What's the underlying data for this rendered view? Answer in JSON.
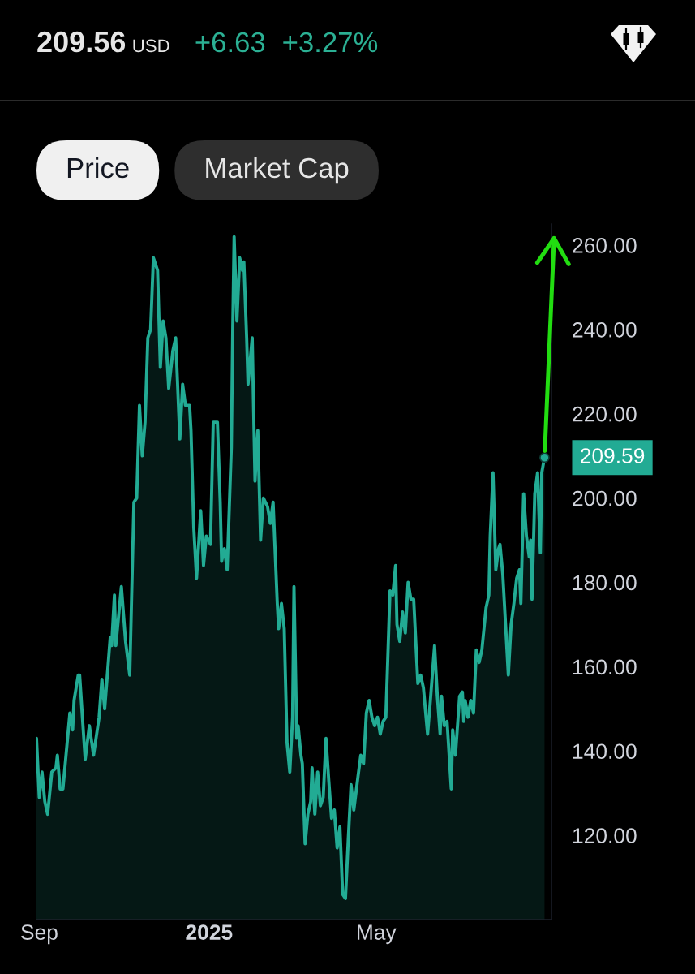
{
  "chart_data": {
    "type": "area",
    "title": "209.56",
    "annotations": [
      "USD",
      "+6.63",
      "+3.27%",
      "Price",
      "Market Cap",
      {
        "text": "209.59",
        "x": "2025-08-30",
        "y": 209.59
      }
    ],
    "color": "#22ab94",
    "x": [
      "2024-08-30",
      "2024-09-01",
      "2024-09-03",
      "2024-09-05",
      "2024-09-07",
      "2024-09-10",
      "2024-09-13",
      "2024-09-14",
      "2024-09-16",
      "2024-09-18",
      "2024-09-23",
      "2024-09-25",
      "2024-09-26",
      "2024-09-29",
      "2024-09-30",
      "2024-10-04",
      "2024-10-07",
      "2024-10-10",
      "2024-10-14",
      "2024-10-16",
      "2024-10-18",
      "2024-10-22",
      "2024-10-23",
      "2024-10-25",
      "2024-10-26",
      "2024-10-30",
      "2024-11-02",
      "2024-11-05",
      "2024-11-08",
      "2024-11-10",
      "2024-11-12",
      "2024-11-14",
      "2024-11-16",
      "2024-11-18",
      "2024-11-20",
      "2024-11-22",
      "2024-11-25",
      "2024-11-27",
      "2024-11-29",
      "2024-12-01",
      "2024-12-03",
      "2024-12-06",
      "2024-12-08",
      "2024-12-11",
      "2024-12-13",
      "2024-12-15",
      "2024-12-18",
      "2024-12-19",
      "2024-12-21",
      "2024-12-23",
      "2024-12-26",
      "2024-12-28",
      "2024-12-30",
      "2025-01-02",
      "2025-01-04",
      "2025-01-07",
      "2025-01-09",
      "2025-01-10",
      "2025-01-12",
      "2025-01-14",
      "2025-01-17",
      "2025-01-18",
      "2025-01-19",
      "2025-01-21",
      "2025-01-23",
      "2025-01-25",
      "2025-01-26",
      "2025-01-28",
      "2025-01-29",
      "2025-02-01",
      "2025-02-03",
      "2025-02-05",
      "2025-02-07",
      "2025-02-09",
      "2025-02-12",
      "2025-02-14",
      "2025-02-16",
      "2025-02-19",
      "2025-02-20",
      "2025-02-22",
      "2025-02-24",
      "2025-02-26",
      "2025-02-28",
      "2025-03-02",
      "2025-03-03",
      "2025-03-05",
      "2025-03-06",
      "2025-03-08",
      "2025-03-09",
      "2025-03-11",
      "2025-03-13",
      "2025-03-15",
      "2025-03-16",
      "2025-03-18",
      "2025-03-20",
      "2025-03-22",
      "2025-03-24",
      "2025-03-26",
      "2025-03-28",
      "2025-03-30",
      "2025-04-01",
      "2025-04-03",
      "2025-04-05",
      "2025-04-07",
      "2025-04-09",
      "2025-04-11",
      "2025-04-13",
      "2025-04-15",
      "2025-04-18",
      "2025-04-20",
      "2025-04-22",
      "2025-04-24",
      "2025-04-26",
      "2025-04-28",
      "2025-04-30",
      "2025-05-02",
      "2025-05-04",
      "2025-05-06",
      "2025-05-08",
      "2025-05-11",
      "2025-05-13",
      "2025-05-15",
      "2025-05-16",
      "2025-05-18",
      "2025-05-20",
      "2025-05-22",
      "2025-05-24",
      "2025-05-26",
      "2025-05-28",
      "2025-05-31",
      "2025-06-02",
      "2025-06-04",
      "2025-06-07",
      "2025-06-09",
      "2025-06-12",
      "2025-06-14",
      "2025-06-16",
      "2025-06-17",
      "2025-06-19",
      "2025-06-21",
      "2025-06-24",
      "2025-06-25",
      "2025-06-27",
      "2025-06-30",
      "2025-07-02",
      "2025-07-03",
      "2025-07-04",
      "2025-07-06",
      "2025-07-08",
      "2025-07-10",
      "2025-07-12",
      "2025-07-14",
      "2025-07-16",
      "2025-07-19",
      "2025-07-21",
      "2025-07-22",
      "2025-07-24",
      "2025-07-26",
      "2025-07-28",
      "2025-07-29",
      "2025-07-31",
      "2025-08-02",
      "2025-08-04",
      "2025-08-06",
      "2025-08-08",
      "2025-08-10",
      "2025-08-12",
      "2025-08-13",
      "2025-08-15",
      "2025-08-17",
      "2025-08-19",
      "2025-08-20",
      "2025-08-21",
      "2025-08-23",
      "2025-08-25",
      "2025-08-27",
      "2025-08-28",
      "2025-08-30"
    ],
    "values": [
      143,
      129,
      135,
      128,
      125,
      135,
      136,
      139,
      131,
      131,
      149,
      145,
      152,
      158,
      158,
      138,
      146,
      139,
      148,
      157,
      150,
      167,
      165,
      177,
      165,
      179,
      166,
      158,
      199,
      200,
      222,
      210,
      218,
      238,
      240,
      257,
      254,
      231,
      242,
      238,
      226,
      235,
      238,
      214,
      227,
      222,
      222,
      216,
      193,
      181,
      197,
      184,
      191,
      189,
      218,
      218,
      199,
      185,
      188,
      183,
      212,
      240,
      262,
      242,
      257,
      254,
      256,
      238,
      227,
      238,
      204,
      216,
      190,
      200,
      198,
      194,
      199,
      175,
      169,
      175,
      169,
      142,
      135,
      148,
      179,
      143,
      146,
      139,
      137,
      118,
      125,
      128,
      136,
      125,
      135,
      127,
      129,
      143,
      133,
      124,
      126,
      117,
      122,
      106,
      105,
      119,
      132,
      126,
      134,
      139,
      137,
      149,
      152,
      148,
      146,
      148,
      144,
      147,
      148,
      178,
      177,
      184,
      170,
      166,
      173,
      168,
      180,
      176,
      176,
      156,
      158,
      155,
      144,
      152,
      165,
      153,
      144,
      153,
      146,
      147,
      131,
      145,
      139,
      153,
      154,
      147,
      152,
      148,
      152,
      149,
      164,
      161,
      164,
      174,
      177,
      191,
      206,
      183,
      188,
      189,
      182,
      170,
      158,
      170,
      175,
      181,
      183,
      175,
      201,
      191,
      186,
      190,
      176,
      201,
      206,
      187,
      206,
      209.59
    ],
    "xlim": [
      "2024-08-30",
      "2025-09-04"
    ],
    "xticks": [
      {
        "value": "2024-09-01",
        "label": "Sep"
      },
      {
        "value": "2025-01-01",
        "label": "2025"
      },
      {
        "value": "2025-05-01",
        "label": "May"
      }
    ],
    "ylim": [
      100,
      265
    ],
    "yticks": [
      {
        "value": 120,
        "label": "120.00"
      },
      {
        "value": 140,
        "label": "140.00"
      },
      {
        "value": 160,
        "label": "160.00"
      },
      {
        "value": 180,
        "label": "180.00"
      },
      {
        "value": 200,
        "label": "200.00"
      },
      {
        "value": 220,
        "label": "220.00"
      },
      {
        "value": 240,
        "label": "240.00"
      },
      {
        "value": 260,
        "label": "260.00"
      }
    ]
  }
}
